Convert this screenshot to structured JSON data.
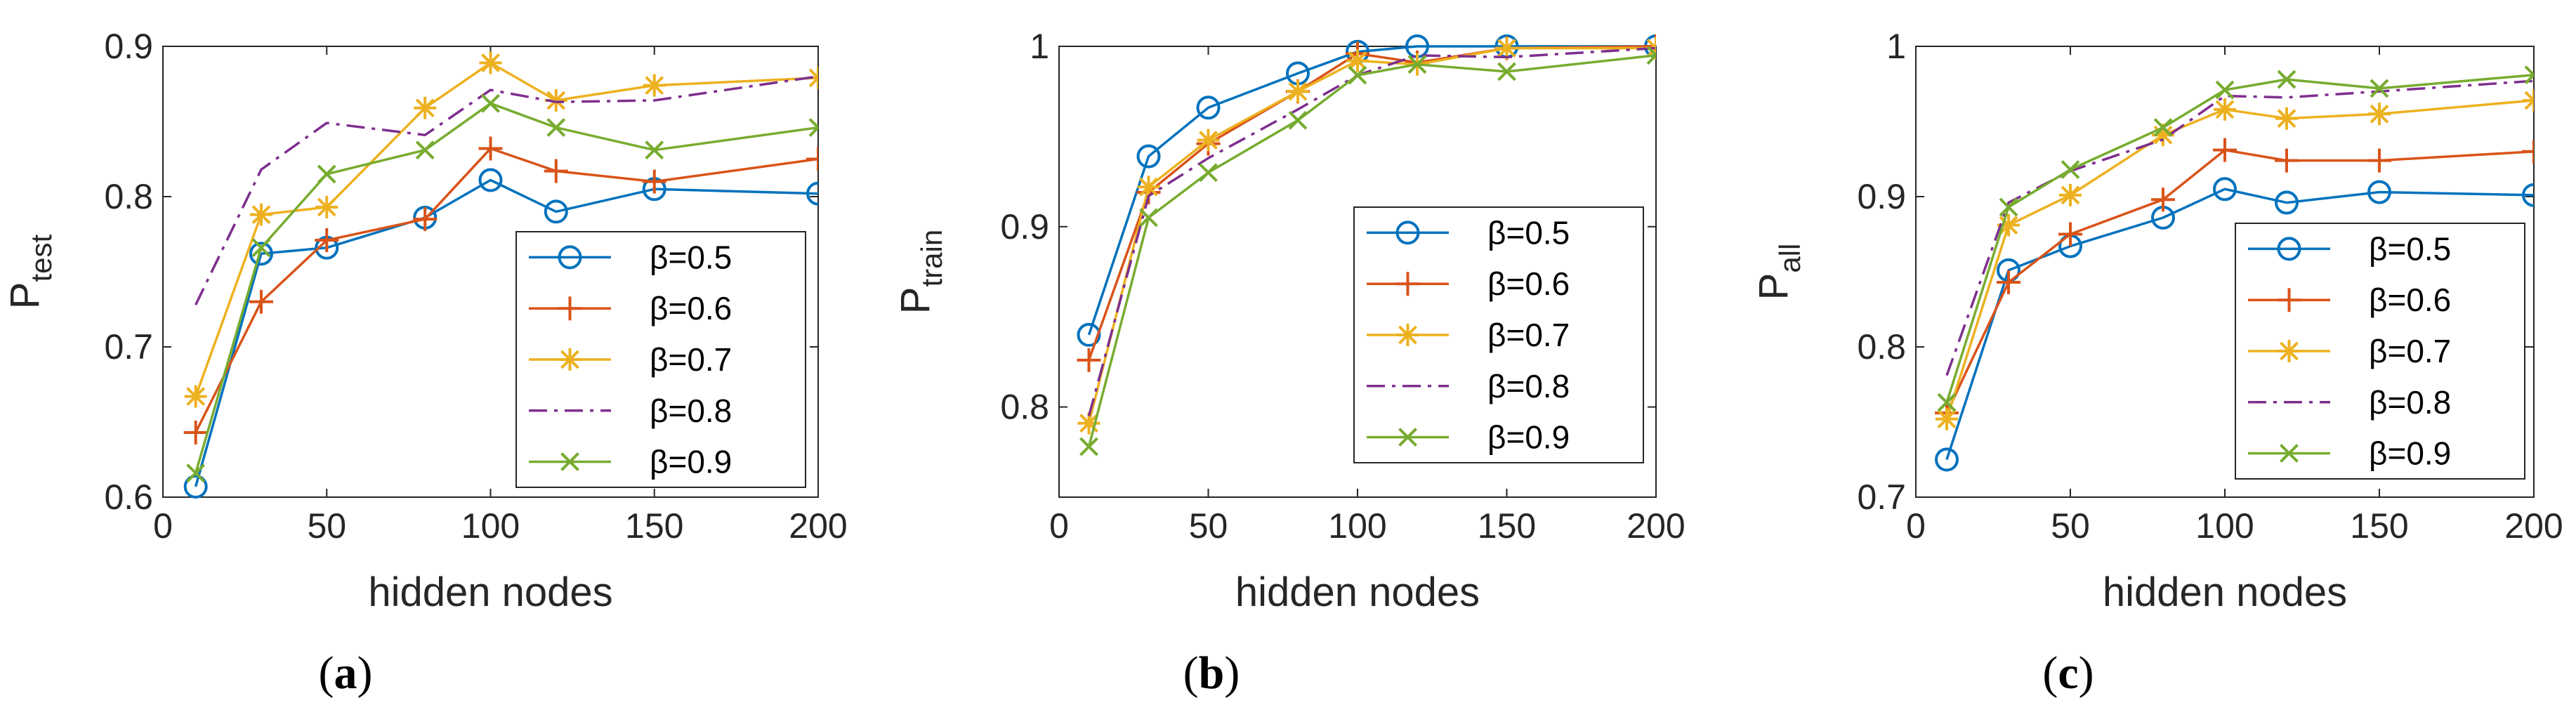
{
  "chart_data": [
    {
      "type": "line",
      "panel_label_open": "(",
      "panel_label_letter": "a",
      "panel_label_close": ")",
      "xlabel": "hidden nodes",
      "ylabel_main": "P",
      "ylabel_sub": "test",
      "xlim": [
        0,
        200
      ],
      "ylim": [
        0.6,
        0.9
      ],
      "xticks": [
        0,
        50,
        100,
        150,
        200
      ],
      "xtick_labels": [
        "0",
        "50",
        "100",
        "150",
        "200"
      ],
      "yticks": [
        0.6,
        0.7,
        0.8,
        0.9
      ],
      "ytick_labels": [
        "0.6",
        "0.7",
        "0.8",
        "0.9"
      ],
      "x": [
        10,
        30,
        50,
        80,
        100,
        120,
        150,
        200
      ],
      "legend_position": "bottom-right",
      "series": [
        {
          "name": "β=0.5",
          "values": [
            0.607,
            0.762,
            0.766,
            0.786,
            0.811,
            0.79,
            0.805,
            0.802
          ]
        },
        {
          "name": "β=0.6",
          "values": [
            0.643,
            0.73,
            0.771,
            0.785,
            0.832,
            0.817,
            0.81,
            0.825
          ]
        },
        {
          "name": "β=0.7",
          "values": [
            0.667,
            0.788,
            0.793,
            0.859,
            0.889,
            0.864,
            0.874,
            0.879
          ]
        },
        {
          "name": "β=0.8",
          "values": [
            0.728,
            0.818,
            0.849,
            0.841,
            0.871,
            0.863,
            0.864,
            0.88
          ]
        },
        {
          "name": "β=0.9",
          "values": [
            0.616,
            0.766,
            0.815,
            0.831,
            0.862,
            0.846,
            0.831,
            0.846
          ]
        }
      ]
    },
    {
      "type": "line",
      "panel_label_open": "(",
      "panel_label_letter": "b",
      "panel_label_close": ")",
      "xlabel": "hidden nodes",
      "ylabel_main": "P",
      "ylabel_sub": "train",
      "xlim": [
        0,
        200
      ],
      "ylim": [
        0.75,
        1.0
      ],
      "xticks": [
        0,
        50,
        100,
        150,
        200
      ],
      "xtick_labels": [
        "0",
        "50",
        "100",
        "150",
        "200"
      ],
      "yticks": [
        0.8,
        0.9,
        1.0
      ],
      "ytick_labels": [
        "0.8",
        "0.9",
        "1"
      ],
      "x": [
        10,
        30,
        50,
        80,
        100,
        120,
        150,
        200
      ],
      "legend_position": "center-right",
      "series": [
        {
          "name": "β=0.5",
          "values": [
            0.84,
            0.939,
            0.966,
            0.985,
            0.997,
            1.0,
            1.0,
            1.0
          ]
        },
        {
          "name": "β=0.6",
          "values": [
            0.826,
            0.919,
            0.946,
            0.975,
            0.996,
            0.991,
            0.999,
            1.0
          ]
        },
        {
          "name": "β=0.7",
          "values": [
            0.791,
            0.922,
            0.948,
            0.975,
            0.992,
            0.99,
            0.999,
            0.999
          ]
        },
        {
          "name": "β=0.8",
          "values": [
            0.795,
            0.917,
            0.938,
            0.965,
            0.984,
            0.995,
            0.994,
            0.999
          ]
        },
        {
          "name": "β=0.9",
          "values": [
            0.778,
            0.905,
            0.93,
            0.959,
            0.984,
            0.99,
            0.986,
            0.995
          ]
        }
      ]
    },
    {
      "type": "line",
      "panel_label_open": "(",
      "panel_label_letter": "c",
      "panel_label_close": ")",
      "xlabel": "hidden nodes",
      "ylabel_main": "P",
      "ylabel_sub": "all",
      "xlim": [
        0,
        200
      ],
      "ylim": [
        0.7,
        1.0
      ],
      "xticks": [
        0,
        50,
        100,
        150,
        200
      ],
      "xtick_labels": [
        "0",
        "50",
        "100",
        "150",
        "200"
      ],
      "yticks": [
        0.7,
        0.8,
        0.9,
        1.0
      ],
      "ytick_labels": [
        "0.7",
        "0.8",
        "0.9",
        "1"
      ],
      "x": [
        10,
        30,
        50,
        80,
        100,
        120,
        150,
        200
      ],
      "legend_position": "bottom-right",
      "series": [
        {
          "name": "β=0.5",
          "values": [
            0.725,
            0.851,
            0.867,
            0.886,
            0.905,
            0.896,
            0.903,
            0.901
          ]
        },
        {
          "name": "β=0.6",
          "values": [
            0.756,
            0.843,
            0.875,
            0.898,
            0.931,
            0.924,
            0.924,
            0.93
          ]
        },
        {
          "name": "β=0.7",
          "values": [
            0.752,
            0.881,
            0.901,
            0.941,
            0.958,
            0.952,
            0.955,
            0.964
          ]
        },
        {
          "name": "β=0.8",
          "values": [
            0.781,
            0.896,
            0.917,
            0.938,
            0.967,
            0.966,
            0.97,
            0.977
          ]
        },
        {
          "name": "β=0.9",
          "values": [
            0.763,
            0.893,
            0.918,
            0.946,
            0.971,
            0.978,
            0.972,
            0.981
          ]
        }
      ]
    }
  ],
  "series_styles": [
    {
      "color": "#0072BD",
      "marker": "circle",
      "line": "solid"
    },
    {
      "color": "#D95319",
      "marker": "plus",
      "line": "solid"
    },
    {
      "color": "#EDB120",
      "marker": "asterisk",
      "line": "solid"
    },
    {
      "color": "#7E2F8E",
      "marker": "none",
      "line": "dashdot"
    },
    {
      "color": "#77AC30",
      "marker": "x",
      "line": "solid"
    }
  ]
}
